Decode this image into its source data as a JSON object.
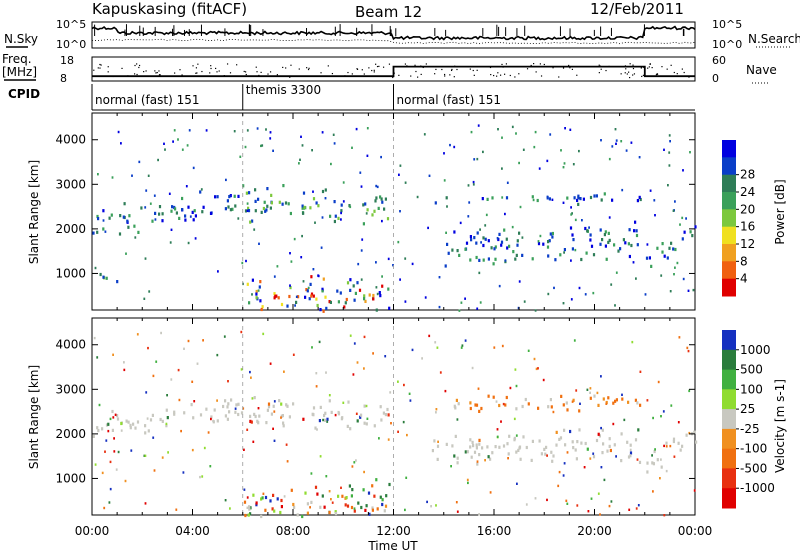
{
  "header": {
    "station": "Kapuskasing (fitACF)",
    "beam": "Beam 12",
    "date": "12/Feb/2011"
  },
  "noise_panel": {
    "left_label": "N.Sky",
    "right_label": "N.Search",
    "yticks_left": [
      "10^5",
      "10^0"
    ],
    "yticks_right": [
      "10^5",
      "10^0"
    ]
  },
  "freq_panel": {
    "left_label_1": "Freq.",
    "left_label_2": "[MHz]",
    "right_label": "Nave",
    "yticks_left": [
      "18",
      "8"
    ],
    "yticks_right": [
      "60",
      "0"
    ],
    "freq_steps": [
      {
        "t": 0,
        "value": 10
      },
      {
        "t": 12,
        "value": 10
      },
      {
        "t": 12,
        "value": 14
      },
      {
        "t": 22,
        "value": 14
      },
      {
        "t": 22,
        "value": 10
      },
      {
        "t": 24,
        "value": 10
      }
    ]
  },
  "cpid": {
    "label": "CPID",
    "segments": [
      {
        "start": 0,
        "end": 6,
        "name": "normal (fast) 151"
      },
      {
        "start": 6,
        "end": 12,
        "name": "themis 3300"
      },
      {
        "start": 12,
        "end": 24,
        "name": "normal (fast) 151"
      }
    ]
  },
  "chart_data": [
    {
      "type": "heatmap",
      "panel": "power",
      "ylabel": "Slant Range [km]",
      "xlabel": "Time UT",
      "x_range_hours": [
        0,
        24
      ],
      "ylim": [
        180,
        4600
      ],
      "yticks": [
        1000,
        2000,
        3000,
        4000
      ],
      "xticks": [
        "00:00",
        "04:00",
        "08:00",
        "12:00",
        "16:00",
        "20:00",
        "00:00"
      ],
      "colorbar": {
        "label": "Power [dB]",
        "ticks": [
          "4",
          "8",
          "12",
          "16",
          "20",
          "24",
          "28"
        ],
        "colors": [
          "#0000e0",
          "#0a3ec8",
          "#2e7d57",
          "#3aa05a",
          "#7cc83c",
          "#f0e020",
          "#f0a020",
          "#f06010",
          "#e00000"
        ]
      },
      "features": [
        {
          "start": 0.0,
          "end": 6.0,
          "center_from": 2100,
          "center_to": 2700,
          "width": 450,
          "intensity": "medium"
        },
        {
          "start": 6.0,
          "end": 11.8,
          "center_from": 2600,
          "center_to": 2500,
          "width": 500,
          "intensity": "high"
        },
        {
          "start": 13.5,
          "end": 21.8,
          "center_from": 2700,
          "center_to": 2700,
          "width": 150,
          "intensity": "medium"
        },
        {
          "start": 14.0,
          "end": 21.8,
          "center_from": 1600,
          "center_to": 1800,
          "width": 550,
          "intensity": "medium"
        },
        {
          "start": 22.0,
          "end": 24.0,
          "center_from": 1300,
          "center_to": 2000,
          "width": 400,
          "intensity": "medium"
        },
        {
          "start": 6.0,
          "end": 11.8,
          "center_from": 500,
          "center_to": 500,
          "width": 600,
          "intensity": "ground"
        },
        {
          "start": 0.0,
          "end": 1.0,
          "center_from": 900,
          "center_to": 900,
          "width": 250,
          "intensity": "high"
        }
      ]
    },
    {
      "type": "heatmap",
      "panel": "velocity",
      "ylabel": "Slant Range [km]",
      "xlabel": "Time UT",
      "x_range_hours": [
        0,
        24
      ],
      "ylim": [
        180,
        4600
      ],
      "yticks": [
        1000,
        2000,
        3000,
        4000
      ],
      "xticks": [
        "00:00",
        "04:00",
        "08:00",
        "12:00",
        "16:00",
        "20:00",
        "00:00"
      ],
      "colorbar": {
        "label": "Velocity [m s-1]",
        "ticks": [
          "1000",
          "500",
          "100",
          "25",
          "-25",
          "-100",
          "-500",
          "-1000"
        ],
        "colors": [
          "#1530c0",
          "#2a7c3c",
          "#40b040",
          "#90dc30",
          "#c8c8c0",
          "#f09020",
          "#f07010",
          "#e83010",
          "#e00000"
        ]
      },
      "features": [
        {
          "start": 0.0,
          "end": 6.0,
          "center_from": 2200,
          "center_to": 2600,
          "width": 400,
          "intensity": "grey"
        },
        {
          "start": 6.0,
          "end": 11.8,
          "center_from": 2500,
          "center_to": 2400,
          "width": 450,
          "intensity": "grey"
        },
        {
          "start": 14.0,
          "end": 21.8,
          "center_from": 2650,
          "center_to": 2800,
          "width": 250,
          "intensity": "orange"
        },
        {
          "start": 13.5,
          "end": 21.8,
          "center_from": 1700,
          "center_to": 1800,
          "width": 500,
          "intensity": "grey"
        },
        {
          "start": 22.0,
          "end": 24.0,
          "center_from": 1300,
          "center_to": 2100,
          "width": 400,
          "intensity": "grey"
        },
        {
          "start": 6.0,
          "end": 11.8,
          "center_from": 500,
          "center_to": 500,
          "width": 600,
          "intensity": "mixed"
        }
      ]
    }
  ]
}
